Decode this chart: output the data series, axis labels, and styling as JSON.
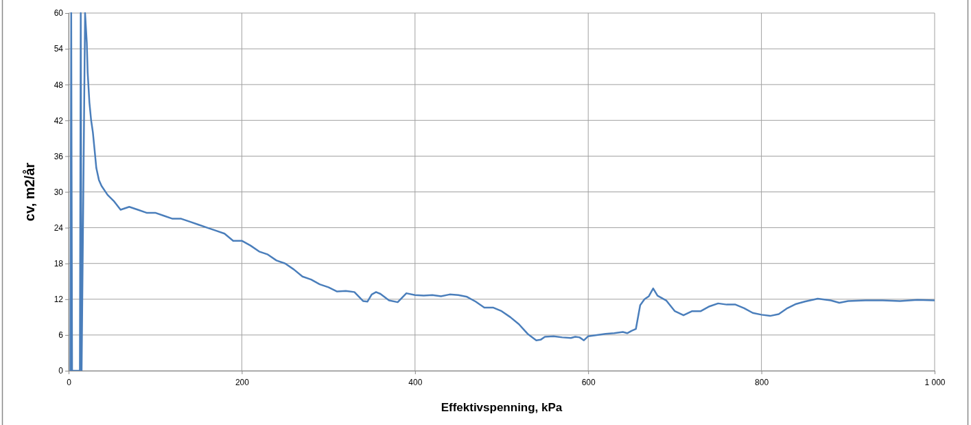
{
  "chart_data": {
    "type": "line",
    "xlabel": "Effektivspenning, kPa",
    "ylabel": "cv, m2/år",
    "xlim": [
      0,
      1000
    ],
    "xticks": [
      0,
      200,
      400,
      600,
      800,
      {
        "value": 1000,
        "label": "1 000"
      }
    ],
    "ylim": [
      0,
      60
    ],
    "yticks": [
      0,
      6,
      12,
      18,
      24,
      30,
      36,
      42,
      48,
      54,
      60
    ],
    "grid": true,
    "line_style": "solid",
    "series": [
      {
        "color": "#4a7ebb",
        "x": [
          2,
          3,
          4,
          13,
          14,
          15,
          19,
          21,
          22,
          24,
          26,
          28,
          30,
          32,
          35,
          38,
          45,
          52,
          60,
          70,
          80,
          90,
          100,
          110,
          120,
          130,
          140,
          150,
          160,
          170,
          180,
          190,
          200,
          210,
          220,
          230,
          240,
          250,
          260,
          270,
          280,
          290,
          300,
          310,
          320,
          330,
          340,
          345,
          350,
          355,
          360,
          370,
          380,
          390,
          400,
          410,
          420,
          430,
          440,
          450,
          460,
          470,
          480,
          490,
          500,
          510,
          520,
          530,
          540,
          545,
          550,
          560,
          570,
          580,
          585,
          590,
          595,
          600,
          610,
          620,
          630,
          640,
          645,
          650,
          655,
          660,
          665,
          670,
          675,
          680,
          690,
          700,
          710,
          720,
          730,
          740,
          750,
          760,
          770,
          780,
          790,
          800,
          810,
          820,
          830,
          840,
          850,
          865,
          880,
          890,
          900,
          920,
          940,
          960,
          980,
          1000
        ],
        "values": [
          0,
          60,
          0,
          0,
          60,
          0,
          60,
          55,
          50,
          45,
          42,
          40,
          37,
          34,
          32,
          31,
          29.5,
          28.5,
          27,
          27.5,
          27,
          26.5,
          26.5,
          26,
          25.5,
          25.5,
          25,
          24.5,
          24,
          23.5,
          23,
          21.8,
          21.8,
          21,
          20,
          19.5,
          18.5,
          18,
          17,
          15.8,
          15.3,
          14.5,
          14,
          13.3,
          13.4,
          13.2,
          11.7,
          11.6,
          12.8,
          13.2,
          12.9,
          11.8,
          11.5,
          13,
          12.7,
          12.6,
          12.7,
          12.5,
          12.8,
          12.7,
          12.4,
          11.6,
          10.6,
          10.6,
          10,
          9,
          7.8,
          6.2,
          5.1,
          5.2,
          5.7,
          5.8,
          5.6,
          5.5,
          5.7,
          5.6,
          5.1,
          5.8,
          6,
          6.2,
          6.3,
          6.5,
          6.3,
          6.7,
          7,
          11,
          12,
          12.5,
          13.8,
          12.6,
          11.8,
          10,
          9.3,
          10,
          10,
          10.8,
          11.3,
          11.1,
          11.1,
          10.5,
          9.7,
          9.4,
          9.2,
          9.5,
          10.5,
          11.2,
          11.6,
          12.1,
          11.8,
          11.4,
          11.7,
          11.8,
          11.8,
          11.7,
          11.9,
          11.8
        ]
      }
    ]
  }
}
